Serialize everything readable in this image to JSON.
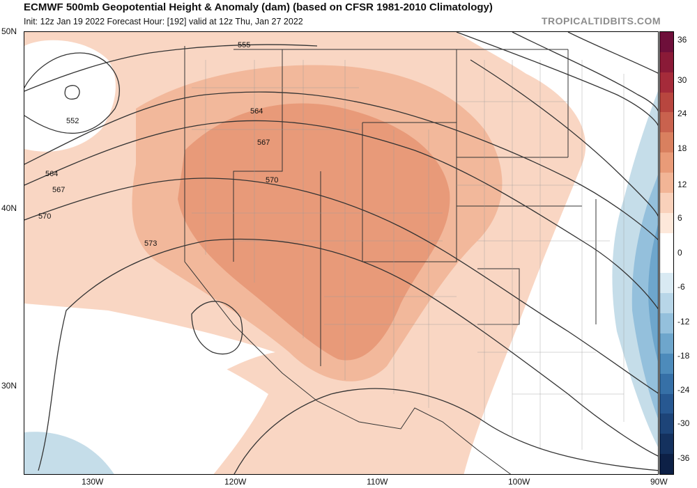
{
  "header": {
    "title": "ECMWF 500mb Geopotential Height & Anomaly (dam) (based on CFSR 1981-2010 Climatology)",
    "subtitle": "Init: 12z Jan 19 2022   Forecast Hour: [192]   valid at 12z Thu, Jan 27 2022",
    "brand": "TROPICALTIDBITS.COM"
  },
  "axes": {
    "lat_labels": [
      "50N",
      "40N",
      "30N"
    ],
    "lon_labels": [
      "130W",
      "120W",
      "110W",
      "100W",
      "90W"
    ]
  },
  "contour_labels": [
    "555",
    "552",
    "564",
    "567",
    "564",
    "567",
    "570",
    "570",
    "573"
  ],
  "colorbar": {
    "labels": [
      "36",
      "30",
      "24",
      "18",
      "12",
      "6",
      "0",
      "-6",
      "-12",
      "-18",
      "-24",
      "-30",
      "-36"
    ],
    "colors": [
      "#6e0f3a",
      "#8a1a37",
      "#a52b3a",
      "#b8463f",
      "#c9624e",
      "#d9805f",
      "#e99b78",
      "#f2b596",
      "#f9d1bb",
      "#fde8da",
      "#ffffff",
      "#ffffff",
      "#d9eaf3",
      "#b8d6e8",
      "#94c0dc",
      "#6ea6cc",
      "#4d8bbb",
      "#3670a7",
      "#275891",
      "#1d4478",
      "#14315e",
      "#0d2046"
    ]
  },
  "colors": {
    "anomaly_strong": "#e89a79",
    "anomaly_mid": "#f2b89b",
    "anomaly_light": "#f9d6c3",
    "anomaly_negative_light": "#c5dde9",
    "anomaly_negative_mid": "#94c0dc",
    "anomaly_negative_strong": "#6ea6cc"
  }
}
